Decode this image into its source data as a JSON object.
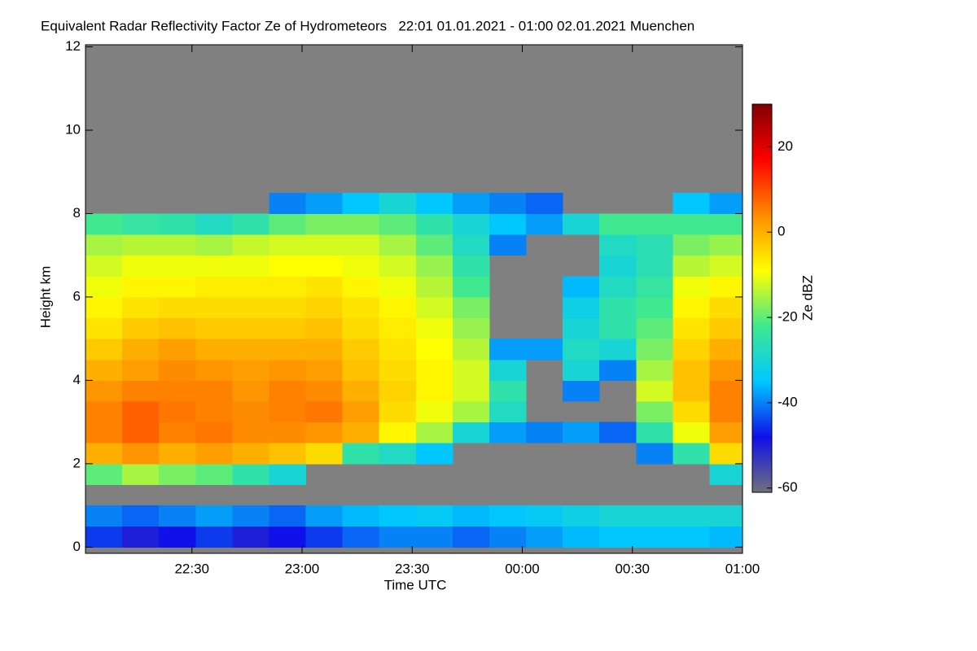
{
  "chart_data": {
    "type": "heatmap",
    "title": "Equivalent Radar Reflectivity Factor Ze of Hydrometeors   22:01 01.01.2021 - 01:00 02.01.2021 Muenchen",
    "x_label": "Time UTC",
    "y_label": "Height km",
    "colorbar_label": "Ze dBZ",
    "xlim": [
      1,
      180
    ],
    "xticks": [
      {
        "value": 30,
        "label": "22:30"
      },
      {
        "value": 60,
        "label": "23:00"
      },
      {
        "value": 90,
        "label": "23:30"
      },
      {
        "value": 120,
        "label": "00:00"
      },
      {
        "value": 150,
        "label": "00:30"
      },
      {
        "value": 180,
        "label": "01:00"
      }
    ],
    "ylim": [
      -0.15,
      12.05
    ],
    "yticks": [
      0,
      2,
      4,
      6,
      8,
      10,
      12
    ],
    "zlim": [
      -61,
      30
    ],
    "zticks": [
      -60,
      -40,
      -20,
      0,
      20
    ],
    "colors": [
      "#70707c",
      "#1010e8",
      "#00c8ff",
      "#40e890",
      "#ffff00",
      "#ff8c00",
      "#ff0000",
      "#800000"
    ],
    "background": "#808080",
    "xbins": [
      1,
      11,
      21,
      31,
      41,
      51,
      61,
      71,
      81,
      91,
      101,
      111,
      121,
      131,
      141,
      151,
      161,
      171,
      180
    ],
    "ybins": [
      0,
      0.5,
      1,
      1.5,
      2,
      2.5,
      3,
      3.5,
      4,
      4.5,
      5,
      5.5,
      6,
      6.5,
      7,
      7.5,
      8,
      8.5,
      9
    ],
    "values": [
      [
        -45,
        -40,
        null,
        -20,
        0,
        5,
        5,
        3,
        0,
        -3,
        -6,
        -8,
        -10,
        -12,
        -15,
        -22,
        null,
        null
      ],
      [
        -50,
        -42,
        null,
        -15,
        3,
        8,
        8,
        5,
        2,
        0,
        -3,
        -6,
        -8,
        -10,
        -14,
        -24,
        null,
        null
      ],
      [
        -48,
        -40,
        null,
        -18,
        0,
        5,
        6,
        5,
        4,
        2,
        -2,
        -5,
        -8,
        -10,
        -14,
        -25,
        null,
        null
      ],
      [
        -45,
        -38,
        null,
        -20,
        2,
        6,
        5,
        5,
        3,
        0,
        -3,
        -5,
        -7,
        -10,
        -15,
        -28,
        null,
        null
      ],
      [
        -50,
        -40,
        null,
        -25,
        0,
        4,
        4,
        3,
        2,
        0,
        -3,
        -5,
        -7,
        -10,
        -13,
        -25,
        null,
        null
      ],
      [
        -48,
        -42,
        null,
        -30,
        -2,
        4,
        5,
        5,
        3,
        0,
        -3,
        -5,
        -7,
        -9,
        -12,
        -20,
        -40,
        null
      ],
      [
        -45,
        -38,
        null,
        null,
        -5,
        3,
        6,
        4,
        2,
        0,
        -2,
        -4,
        -6,
        -9,
        -12,
        -18,
        -38,
        null
      ],
      [
        -42,
        -36,
        null,
        null,
        -25,
        0,
        2,
        0,
        -2,
        -3,
        -5,
        -6,
        -8,
        -10,
        -12,
        -18,
        -35,
        null
      ],
      [
        -40,
        -35,
        null,
        null,
        -28,
        -8,
        -5,
        -4,
        -5,
        -6,
        -7,
        -8,
        -10,
        -12,
        -15,
        -20,
        -30,
        null
      ],
      [
        -40,
        -34,
        null,
        null,
        -35,
        -15,
        -10,
        -8,
        -8,
        -9,
        -10,
        -12,
        -14,
        -16,
        -20,
        -25,
        -35,
        null
      ],
      [
        -42,
        -36,
        null,
        null,
        null,
        -30,
        -15,
        -12,
        -12,
        -14,
        -16,
        -18,
        -22,
        -25,
        -28,
        -30,
        -38,
        null
      ],
      [
        -40,
        -35,
        null,
        null,
        null,
        -38,
        -28,
        -25,
        -30,
        -38,
        null,
        null,
        null,
        null,
        -40,
        -35,
        -40,
        null
      ],
      [
        -38,
        -34,
        null,
        null,
        null,
        -40,
        null,
        null,
        null,
        -38,
        null,
        null,
        null,
        null,
        null,
        -38,
        -42,
        null
      ],
      [
        -36,
        -32,
        null,
        null,
        null,
        -38,
        null,
        -40,
        -30,
        -28,
        -30,
        -32,
        -36,
        null,
        null,
        -30,
        null,
        null
      ],
      [
        -35,
        -30,
        null,
        null,
        null,
        -42,
        null,
        null,
        -40,
        -30,
        -25,
        -25,
        -28,
        -30,
        -28,
        -22,
        null,
        null
      ],
      [
        -35,
        -30,
        null,
        null,
        -40,
        -25,
        -18,
        -12,
        -15,
        -18,
        -20,
        -22,
        -24,
        -26,
        -26,
        -22,
        null,
        null
      ],
      [
        -35,
        -30,
        null,
        null,
        -25,
        -10,
        -5,
        -2,
        -2,
        -4,
        -6,
        -8,
        -10,
        -14,
        -18,
        -22,
        -35,
        null
      ],
      [
        -36,
        -30,
        null,
        -30,
        -5,
        2,
        5,
        5,
        3,
        0,
        -3,
        -5,
        -8,
        -12,
        -16,
        -22,
        -38,
        null
      ]
    ]
  }
}
